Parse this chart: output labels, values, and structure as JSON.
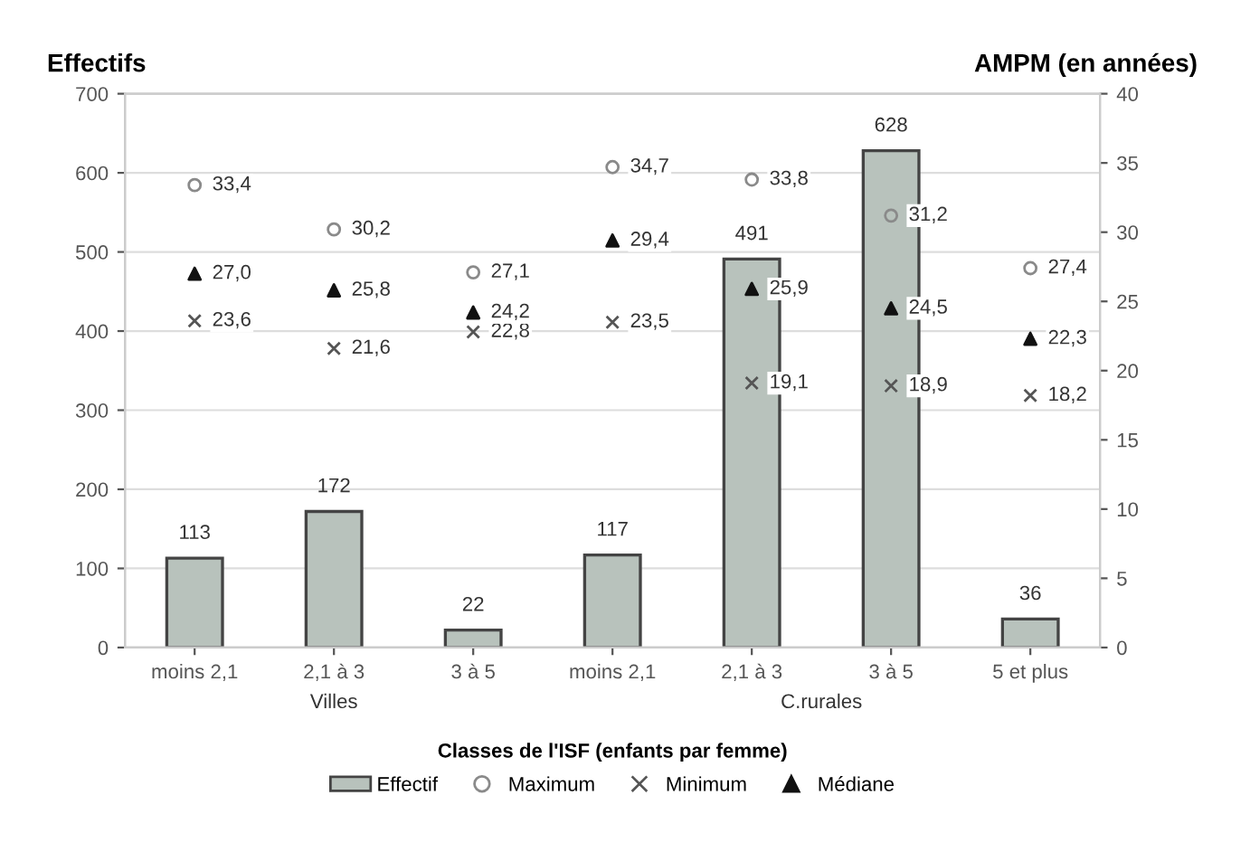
{
  "chart_data": {
    "type": "bar",
    "ylabel": "Effectifs",
    "y2label": "AMPM (en années)",
    "xlabel": "Classes de l'ISF (enfants par femme)",
    "categories": [
      "moins 2,1",
      "2,1 à 3",
      "3 à 5",
      "moins 2,1",
      "2,1 à 3",
      "3 à 5",
      "5 et plus"
    ],
    "annotations": [
      "Villes",
      "C.rurales"
    ],
    "series": [
      {
        "name": "Effectif",
        "color": "#b8c2bc",
        "values": [
          113,
          172,
          22,
          117,
          491,
          628,
          36
        ],
        "value_labels": [
          "113",
          "172",
          "22",
          "117",
          "491",
          "628",
          "36"
        ]
      },
      {
        "name": "Maximum",
        "type": "scatter",
        "axis": "y2",
        "marker": "circle",
        "color": "#8a8a8a",
        "values": [
          33.4,
          30.2,
          27.1,
          34.7,
          33.8,
          31.2,
          27.4
        ],
        "value_labels": [
          "33,4",
          "30,2",
          "27,1",
          "34,7",
          "33,8",
          "31,2",
          "27,4"
        ]
      },
      {
        "name": "Minimum",
        "type": "scatter",
        "axis": "y2",
        "marker": "cross",
        "color": "#555555",
        "values": [
          23.6,
          21.6,
          22.8,
          23.5,
          19.1,
          18.9,
          18.2
        ],
        "value_labels": [
          "23,6",
          "21,6",
          "22,8",
          "23,5",
          "19,1",
          "18,9",
          "18,2"
        ]
      },
      {
        "name": "Médiane",
        "type": "scatter",
        "axis": "y2",
        "marker": "triangle",
        "color": "#111111",
        "values": [
          27.0,
          25.8,
          24.2,
          29.4,
          25.9,
          24.5,
          22.3
        ],
        "value_labels": [
          "27,0",
          "25,8",
          "24,2",
          "29,4",
          "25,9",
          "24,5",
          "22,3"
        ]
      }
    ],
    "ylim": [
      0,
      700
    ],
    "yticks": [
      0,
      100,
      200,
      300,
      400,
      500,
      600,
      700
    ],
    "y2lim": [
      0,
      40
    ],
    "y2ticks": [
      0,
      5,
      10,
      15,
      20,
      25,
      30,
      35,
      40
    ],
    "grid": "y",
    "legend": "bottom"
  }
}
